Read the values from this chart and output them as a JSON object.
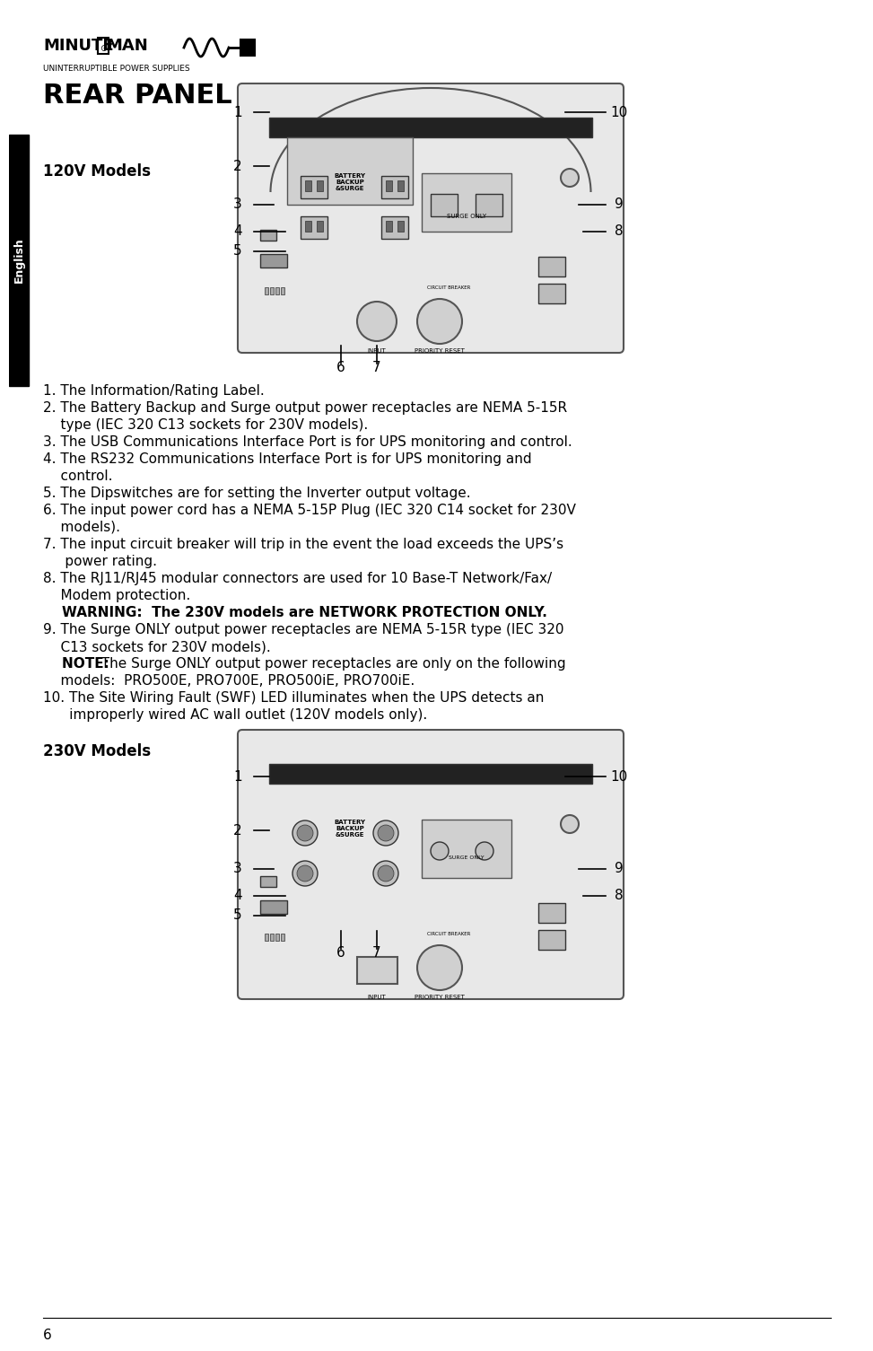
{
  "title": "REAR PANEL",
  "bg_color": "#ffffff",
  "text_color": "#000000",
  "sidebar_color": "#000000",
  "sidebar_text": "English",
  "model1_label": "120V Models",
  "model2_label": "230V Models",
  "callout_items": [
    "1. The Information/Rating Label.",
    "2. The Battery Backup and Surge output power receptacles are NEMA 5-15R\n    type (IEC 320 C13 sockets for 230V models).",
    "3. The USB Communications Interface Port is for UPS monitoring and control.",
    "4. The RS232 Communications Interface Port is for UPS monitoring and\n    control.",
    "5. The Dipswitches are for setting the Inverter output voltage.",
    "6. The input power cord has a NEMA 5-15P Plug (IEC 320 C14 socket for 230V\n    models).",
    "7. The input circuit breaker will trip in the event the load exceeds the UPS’s\n    power rating.",
    "8. The RJ11/RJ45 modular connectors are used for 10 Base-T Network/Fax/\n    Modem protection.",
    "9. The Surge ONLY output power receptacles are NEMA 5-15R type (IEC 320\n    C13 sockets for 230V models).",
    "10. The Site Wiring Fault (SWF) LED illuminates when the UPS detects an\n      improperly wired AC wall outlet (120V models only)."
  ],
  "warning_line": "WARNING:  The 230V models are NETWORK PROTECTION ONLY.",
  "note_prefix": "NOTE:",
  "note_text": "  The Surge ONLY output power receptacles are only on the following\n    models:  PRO500E, PRO700E, PRO500iE, PRO700iE.",
  "page_number": "6",
  "font_size_title": 22,
  "font_size_body": 11,
  "font_size_label": 12,
  "font_size_sidebar": 10
}
